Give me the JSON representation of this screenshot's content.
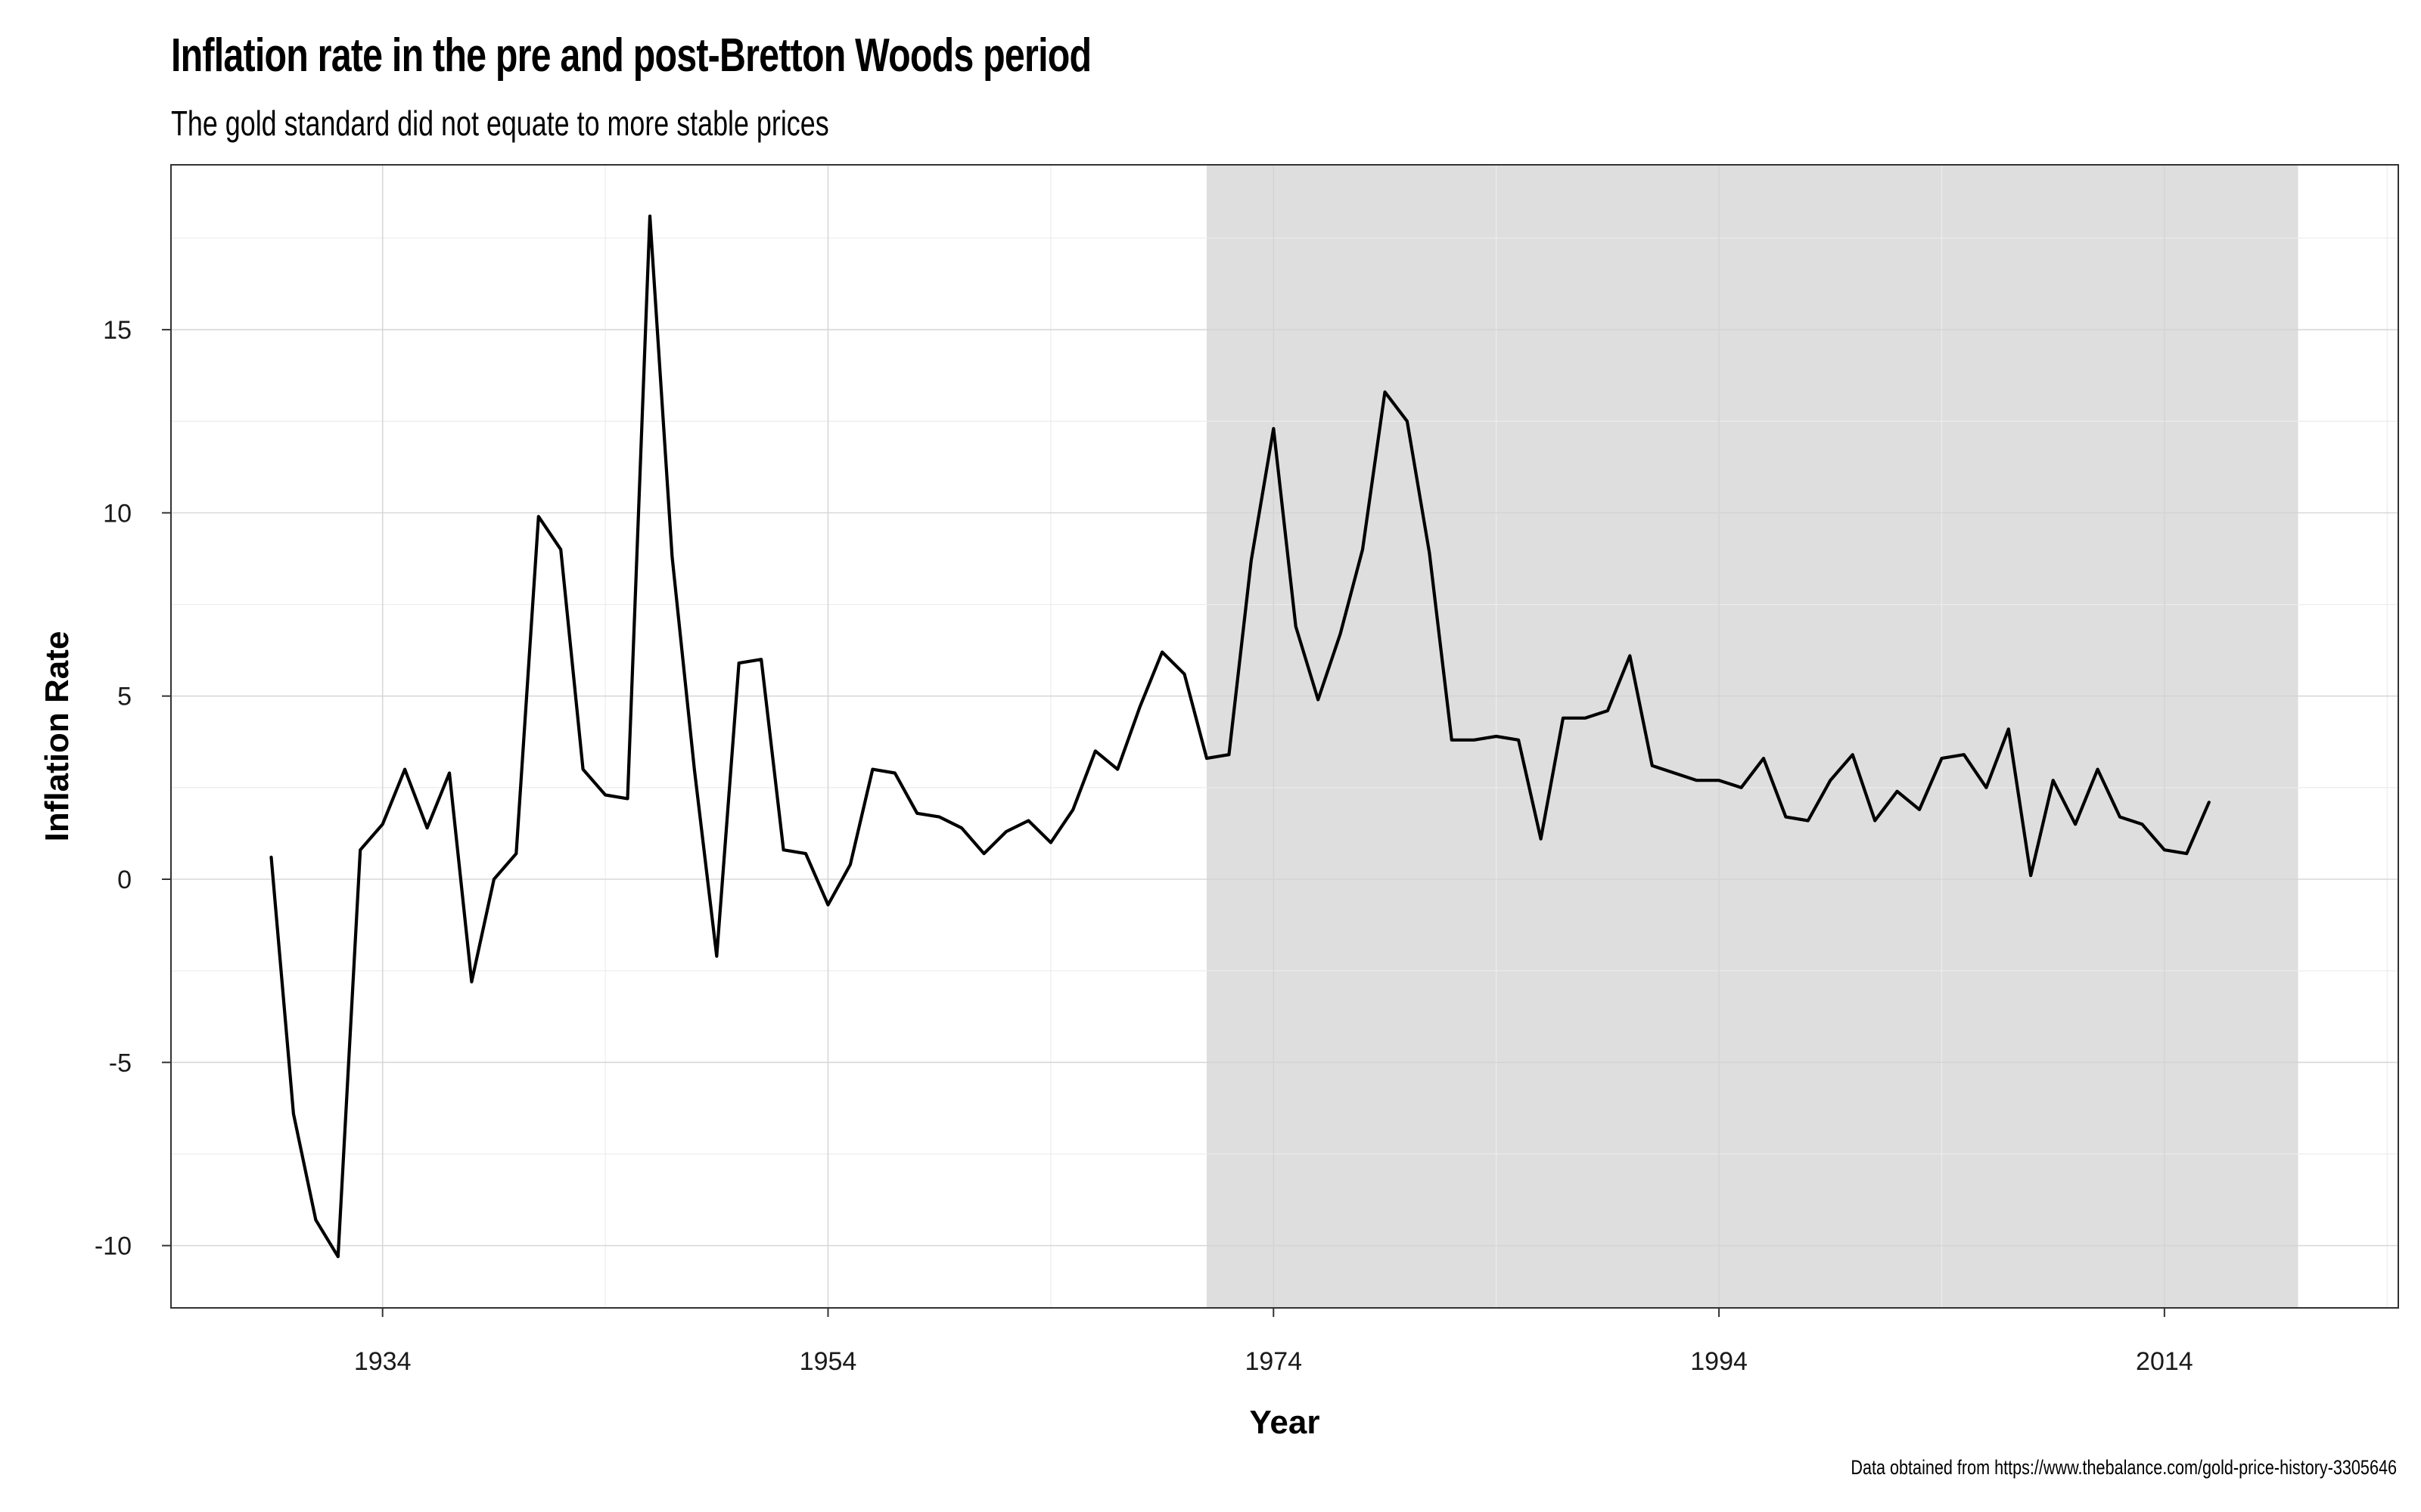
{
  "title": "Inflation rate in the pre and post-Bretton Woods period",
  "subtitle": "The gold standard did not equate to more stable prices",
  "caption": "Data obtained from https://www.thebalance.com/gold-price-history-3305646",
  "colors": {
    "line": "#000000",
    "shaded_region": "#dedede",
    "grid_major": "#d4d4d4",
    "grid_minor": "#ececec",
    "panel_border": "#333333"
  },
  "chart_data": {
    "type": "line",
    "title": "Inflation rate in the pre and post-Bretton Woods period",
    "subtitle": "The gold standard did not equate to more stable prices",
    "xlabel": "Year",
    "ylabel": "Inflation Rate",
    "xlim": [
      1924.5,
      2024.5
    ],
    "ylim": [
      -11.7,
      19.5
    ],
    "x_ticks": [
      1934,
      1954,
      1974,
      1994,
      2014
    ],
    "y_ticks": [
      -10,
      -5,
      0,
      5,
      10,
      15
    ],
    "grid": true,
    "legend": "none",
    "shaded_region": {
      "x_start": 1971,
      "x_end": 2020
    },
    "series": [
      {
        "x": [
          1929,
          1930,
          1931,
          1932,
          1933,
          1934,
          1935,
          1936,
          1937,
          1938,
          1939,
          1940,
          1941,
          1942,
          1943,
          1944,
          1945,
          1946,
          1947,
          1948,
          1949,
          1950,
          1951,
          1952,
          1953,
          1954,
          1955,
          1956,
          1957,
          1958,
          1959,
          1960,
          1961,
          1962,
          1963,
          1964,
          1965,
          1966,
          1967,
          1968,
          1969,
          1970,
          1971,
          1972,
          1973,
          1974,
          1975,
          1976,
          1977,
          1978,
          1979,
          1980,
          1981,
          1982,
          1983,
          1984,
          1985,
          1986,
          1987,
          1988,
          1989,
          1990,
          1991,
          1992,
          1993,
          1994,
          1995,
          1996,
          1997,
          1998,
          1999,
          2000,
          2001,
          2002,
          2003,
          2004,
          2005,
          2006,
          2007,
          2008,
          2009,
          2010,
          2011,
          2012,
          2013,
          2014,
          2015,
          2016
        ],
        "values": [
          0.6,
          -6.4,
          -9.3,
          -10.3,
          0.8,
          1.5,
          3.0,
          1.4,
          2.9,
          -2.8,
          0.0,
          0.7,
          9.9,
          9.0,
          3.0,
          2.3,
          2.2,
          18.1,
          8.8,
          3.0,
          -2.1,
          5.9,
          6.0,
          0.8,
          0.7,
          -0.7,
          0.4,
          3.0,
          2.9,
          1.8,
          1.7,
          1.4,
          0.7,
          1.3,
          1.6,
          1.0,
          1.9,
          3.5,
          3.0,
          4.7,
          6.2,
          5.6,
          3.3,
          3.4,
          8.7,
          12.3,
          6.9,
          4.9,
          6.7,
          9.0,
          13.3,
          12.5,
          8.9,
          3.8,
          3.8,
          3.9,
          3.8,
          1.1,
          4.4,
          4.4,
          4.6,
          6.1,
          3.1,
          2.9,
          2.7,
          2.7,
          2.5,
          3.3,
          1.7,
          1.6,
          2.7,
          3.4,
          1.6,
          2.4,
          1.9,
          3.3,
          3.4,
          2.5,
          4.1,
          0.1,
          2.7,
          1.5,
          3.0,
          1.7,
          1.5,
          0.8,
          0.7,
          2.1
        ]
      }
    ]
  }
}
